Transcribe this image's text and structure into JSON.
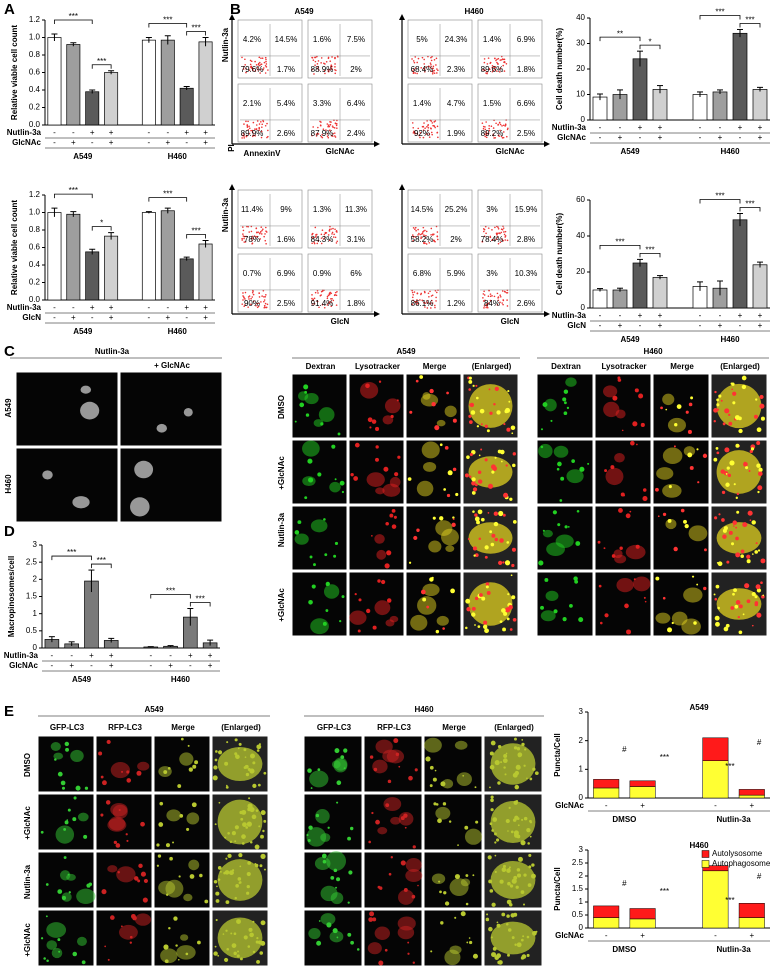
{
  "panel_labels": [
    "A",
    "B",
    "C",
    "D",
    "E"
  ],
  "chart_data": [
    {
      "type": "bar",
      "y_label": "Relative viable cell count",
      "ylim": [
        0,
        1.2
      ],
      "yticks": [
        {
          "value": 0,
          "label": "0.0"
        },
        0.2,
        0.4,
        0.6,
        0.8,
        {
          "value": 1,
          "label": "1.0"
        },
        1.2
      ],
      "values": [
        1.0,
        0.92,
        0.38,
        0.6,
        0.97,
        0.97,
        0.42,
        0.95
      ],
      "errors": [
        0.04,
        0.02,
        0.02,
        0.02,
        0.03,
        0.05,
        0.02,
        0.05
      ],
      "colors": [
        "#ffffff",
        "#9e9e9e",
        "#5a5a5a",
        "#d0d0d0",
        "#ffffff",
        "#9e9e9e",
        "#5a5a5a",
        "#d0d0d0"
      ],
      "rows": [
        {
          "name": "Nutlin-3a",
          "signs": [
            "-",
            "-",
            "+",
            "+",
            "-",
            "-",
            "+",
            "+"
          ]
        },
        {
          "name": "GlcNAc",
          "signs": [
            "-",
            "+",
            "-",
            "+",
            "-",
            "+",
            "-",
            "+"
          ]
        }
      ],
      "groups": [
        "A549",
        "H460"
      ],
      "significance": [
        "***",
        "***",
        "***",
        "***"
      ]
    },
    {
      "type": "bar",
      "y_label": "Relative viable cell count",
      "ylim": [
        0,
        1.2
      ],
      "yticks": [
        {
          "value": 0,
          "label": "0.0"
        },
        0.2,
        0.4,
        0.6,
        0.8,
        {
          "value": 1,
          "label": "1.0"
        },
        1.2
      ],
      "values": [
        1.0,
        0.98,
        0.55,
        0.73,
        1.0,
        1.02,
        0.47,
        0.64
      ],
      "errors": [
        0.05,
        0.03,
        0.03,
        0.04,
        0.01,
        0.03,
        0.02,
        0.04
      ],
      "colors": [
        "#ffffff",
        "#9e9e9e",
        "#5a5a5a",
        "#d0d0d0",
        "#ffffff",
        "#9e9e9e",
        "#5a5a5a",
        "#d0d0d0"
      ],
      "rows": [
        {
          "name": "Nutlin-3a",
          "signs": [
            "-",
            "-",
            "+",
            "+",
            "-",
            "-",
            "+",
            "+"
          ]
        },
        {
          "name": "GlcN",
          "signs": [
            "-",
            "+",
            "-",
            "+",
            "-",
            "+",
            "-",
            "+"
          ]
        }
      ],
      "groups": [
        "A549",
        "H460"
      ],
      "significance": [
        "***",
        "*",
        "***",
        "***"
      ]
    },
    {
      "type": "bar",
      "y_label": "Cell death number(%)",
      "ylim": [
        0,
        40
      ],
      "yticks": [
        0,
        10,
        20,
        30,
        40
      ],
      "values": [
        9,
        10,
        24,
        12,
        10,
        11,
        34,
        12
      ],
      "errors": [
        1.2,
        1.8,
        3,
        1.5,
        1,
        0.8,
        1.5,
        0.8
      ],
      "colors": [
        "#ffffff",
        "#9e9e9e",
        "#5a5a5a",
        "#d0d0d0",
        "#ffffff",
        "#9e9e9e",
        "#5a5a5a",
        "#d0d0d0"
      ],
      "rows": [
        {
          "name": "Nutlin-3a",
          "signs": [
            "-",
            "-",
            "+",
            "+",
            "-",
            "-",
            "+",
            "+"
          ]
        },
        {
          "name": "GlcNAc",
          "signs": [
            "-",
            "+",
            "-",
            "+",
            "-",
            "+",
            "-",
            "+"
          ]
        }
      ],
      "groups": [
        "A549",
        "H460"
      ],
      "significance": [
        "**",
        "*",
        "***",
        "***"
      ]
    },
    {
      "type": "bar",
      "y_label": "Cell death number(%)",
      "ylim": [
        0,
        60
      ],
      "yticks": [
        0,
        20,
        40,
        60
      ],
      "values": [
        10,
        10,
        25,
        17,
        12,
        11,
        49,
        24
      ],
      "errors": [
        0.8,
        1,
        2,
        1,
        2.5,
        4,
        3.5,
        1.5
      ],
      "colors": [
        "#ffffff",
        "#9e9e9e",
        "#5a5a5a",
        "#d0d0d0",
        "#ffffff",
        "#9e9e9e",
        "#5a5a5a",
        "#d0d0d0"
      ],
      "rows": [
        {
          "name": "Nutlin-3a",
          "signs": [
            "-",
            "-",
            "+",
            "+",
            "-",
            "-",
            "+",
            "+"
          ]
        },
        {
          "name": "GlcN",
          "signs": [
            "-",
            "+",
            "-",
            "+",
            "-",
            "+",
            "-",
            "+"
          ]
        }
      ],
      "groups": [
        "A549",
        "H460"
      ],
      "significance": [
        "***",
        "***",
        "***",
        "***"
      ]
    },
    {
      "type": "bar",
      "y_label": "Macropinosomes/cell",
      "ylim": [
        0,
        3
      ],
      "yticks": [
        0,
        0.5,
        1,
        1.5,
        2,
        2.5,
        3
      ],
      "values": [
        0.25,
        0.12,
        1.95,
        0.22,
        0.03,
        0.05,
        0.9,
        0.15
      ],
      "errors": [
        0.08,
        0.06,
        0.32,
        0.06,
        0.01,
        0.02,
        0.25,
        0.08
      ],
      "colors": [
        "#7a7a7a",
        "#7a7a7a",
        "#7a7a7a",
        "#7a7a7a",
        "#7a7a7a",
        "#7a7a7a",
        "#7a7a7a",
        "#7a7a7a"
      ],
      "rows": [
        {
          "name": "Nutlin-3a",
          "signs": [
            "-",
            "-",
            "+",
            "+",
            "-",
            "-",
            "+",
            "+"
          ]
        },
        {
          "name": "GlcNAc",
          "signs": [
            "-",
            "+",
            "-",
            "+",
            "-",
            "+",
            "-",
            "+"
          ]
        }
      ],
      "groups": [
        "A549",
        "H460"
      ],
      "significance": [
        "***",
        "***",
        "***",
        "***"
      ]
    },
    {
      "type": "stacked_bar",
      "title": "A549",
      "y_label": "Puncta/Cell",
      "ylim": [
        0,
        3
      ],
      "yticks": [
        0,
        1,
        2,
        3
      ],
      "series": [
        {
          "name": "Autophagosome",
          "color": "#ffff33",
          "values": [
            0.35,
            0.4,
            1.3,
            0.1
          ]
        },
        {
          "name": "Autolysosome",
          "color": "#ff1a1a",
          "values": [
            0.3,
            0.2,
            0.8,
            0.2
          ]
        }
      ],
      "rows": [
        {
          "name": "GlcNAc",
          "signs": [
            "-",
            "+",
            "-",
            "+"
          ]
        }
      ],
      "groups": [
        "DMSO",
        "Nutlin-3a"
      ],
      "significance": [
        "#",
        "***",
        "***",
        "#"
      ],
      "legend": false
    },
    {
      "type": "stacked_bar",
      "title": "H460",
      "y_label": "Puncta/Cell",
      "ylim": [
        0,
        3
      ],
      "yticks": [
        0,
        0.5,
        1,
        1.5,
        2,
        2.5,
        3
      ],
      "series": [
        {
          "name": "Autophagosome",
          "color": "#ffff33",
          "values": [
            0.4,
            0.35,
            2.2,
            0.4
          ]
        },
        {
          "name": "Autolysosome",
          "color": "#ff1a1a",
          "values": [
            0.45,
            0.4,
            0.2,
            0.55
          ]
        }
      ],
      "rows": [
        {
          "name": "GlcNAc",
          "signs": [
            "-",
            "+",
            "-",
            "+"
          ]
        }
      ],
      "groups": [
        "DMSO",
        "Nutlin-3a"
      ],
      "significance": [
        "#",
        "***",
        "***",
        "#"
      ],
      "legend": true
    }
  ],
  "flow": {
    "cell_lines": [
      "A549",
      "H460"
    ],
    "y_axis": "Nutlin-3a",
    "pi": "PI",
    "annexin": "AnnexinV",
    "x_axes": [
      "GlcNAc",
      "GlcN"
    ],
    "blocks": [
      {
        "plots": [
          [
            "4.2%",
            "14.5%",
            "79.6%",
            "1.7%"
          ],
          [
            "1.6%",
            "7.5%",
            "88.9%",
            "2%"
          ],
          [
            "2.1%",
            "5.4%",
            "89.9%",
            "2.6%"
          ],
          [
            "3.3%",
            "6.4%",
            "87.9%",
            "2.4%"
          ]
        ]
      },
      {
        "plots": [
          [
            "5%",
            "24.3%",
            "68.4%",
            "2.3%"
          ],
          [
            "1.4%",
            "6.9%",
            "89.6%",
            "1.8%"
          ],
          [
            "1.4%",
            "4.7%",
            "92%",
            "1.9%"
          ],
          [
            "1.5%",
            "6.6%",
            "89.2%",
            "2.5%"
          ]
        ]
      },
      {
        "plots": [
          [
            "11.4%",
            "9%",
            "78%",
            "1.6%"
          ],
          [
            "1.3%",
            "11.3%",
            "84.3%",
            "3.1%"
          ],
          [
            "0.7%",
            "6.9%",
            "90%",
            "2.5%"
          ],
          [
            "0.9%",
            "6%",
            "91.4%",
            "1.8%"
          ]
        ]
      },
      {
        "plots": [
          [
            "14.5%",
            "25.2%",
            "58.2%",
            "2%"
          ],
          [
            "3%",
            "15.9%",
            "78.4%",
            "2.8%"
          ],
          [
            "6.8%",
            "5.9%",
            "86.1%",
            "1.2%"
          ],
          [
            "3%",
            "10.3%",
            "84%",
            "2.6%"
          ]
        ]
      }
    ]
  },
  "panel_c": {
    "left": {
      "title": "Nutlin-3a",
      "treatment": "+ GlcNAc",
      "rows": [
        "A549",
        "H460"
      ]
    },
    "right": {
      "panels": [
        "A549",
        "H460"
      ],
      "columns": [
        "Dextran",
        "Lysotracker",
        "Merge",
        "(Enlarged)"
      ],
      "rows": [
        "DMSO",
        "+GlcNAc",
        "Nutlin-3a",
        "+GlcNAc"
      ]
    }
  },
  "panel_e": {
    "panels": [
      "A549",
      "H460"
    ],
    "columns": [
      "GFP-LC3",
      "RFP-LC3",
      "Merge",
      "(Enlarged)"
    ],
    "rows": [
      "DMSO",
      "+GlcNAc",
      "Nutlin-3a",
      "+GlcNAc"
    ]
  }
}
